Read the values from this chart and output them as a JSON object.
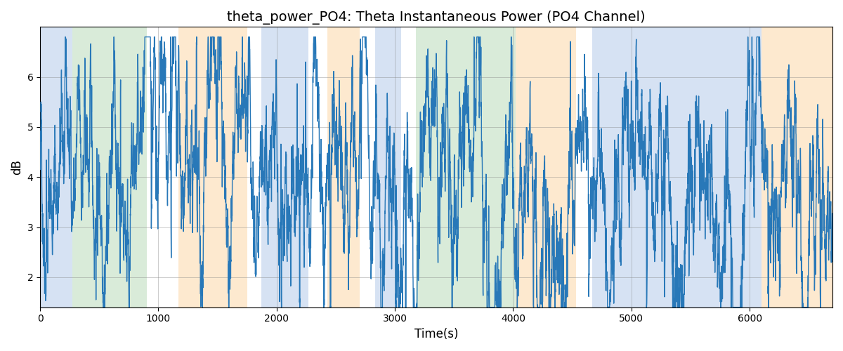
{
  "title": "theta_power_PO4: Theta Instantaneous Power (PO4 Channel)",
  "xlabel": "Time(s)",
  "ylabel": "dB",
  "xlim": [
    0,
    6700
  ],
  "ylim": [
    1.4,
    7.0
  ],
  "yticks": [
    2,
    3,
    4,
    5,
    6
  ],
  "background_bands": [
    {
      "xmin": 0,
      "xmax": 270,
      "color": "#aec6e8",
      "alpha": 0.5
    },
    {
      "xmin": 270,
      "xmax": 900,
      "color": "#b5d9b5",
      "alpha": 0.5
    },
    {
      "xmin": 1170,
      "xmax": 1750,
      "color": "#fdd4a0",
      "alpha": 0.5
    },
    {
      "xmin": 1870,
      "xmax": 2270,
      "color": "#aec6e8",
      "alpha": 0.5
    },
    {
      "xmin": 2430,
      "xmax": 2700,
      "color": "#fdd4a0",
      "alpha": 0.5
    },
    {
      "xmin": 2830,
      "xmax": 3050,
      "color": "#aec6e8",
      "alpha": 0.5
    },
    {
      "xmin": 3180,
      "xmax": 4020,
      "color": "#b5d9b5",
      "alpha": 0.5
    },
    {
      "xmin": 4020,
      "xmax": 4530,
      "color": "#fdd4a0",
      "alpha": 0.5
    },
    {
      "xmin": 4670,
      "xmax": 6100,
      "color": "#aec6e8",
      "alpha": 0.5
    },
    {
      "xmin": 6100,
      "xmax": 6700,
      "color": "#fdd4a0",
      "alpha": 0.5
    }
  ],
  "line_color": "#2878b8",
  "line_width": 1.0,
  "title_fontsize": 14,
  "label_fontsize": 12,
  "figsize": [
    12,
    5
  ],
  "dpi": 100,
  "seed": 42,
  "n_points": 6700,
  "x_start": 0,
  "x_end": 6700
}
